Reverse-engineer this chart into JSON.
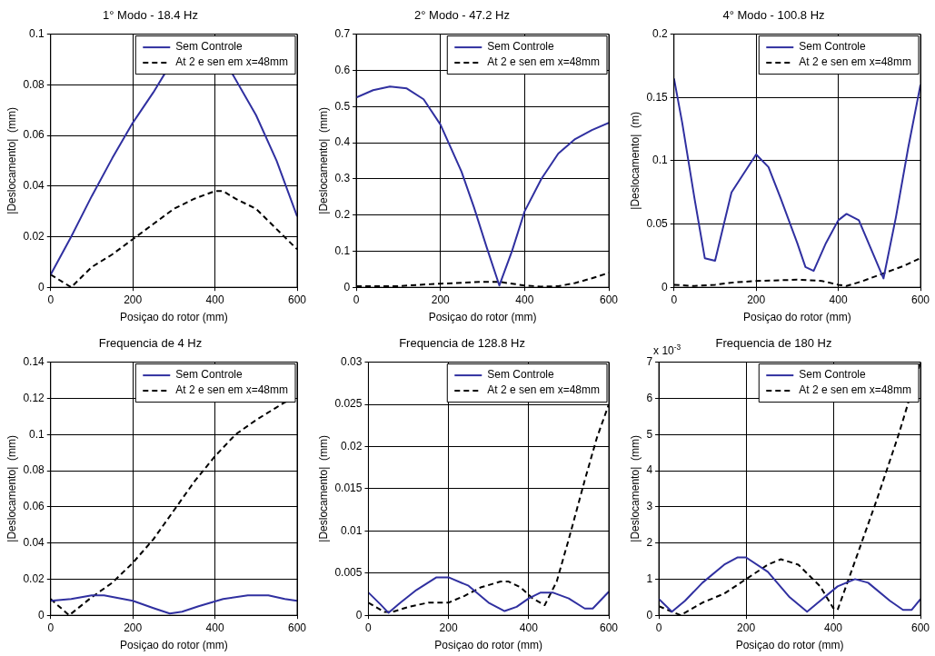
{
  "chart_data": [
    {
      "type": "line",
      "title": "1° Modo - 18.4 Hz",
      "xlabel": "Posiçao do rotor (mm)",
      "ylabel": "|Deslocamento|  (mm)",
      "xlim": [
        0,
        600
      ],
      "xticks": [
        0,
        200,
        400,
        600
      ],
      "ylim": [
        0,
        0.1
      ],
      "yticks": [
        0,
        0.02,
        0.04,
        0.06,
        0.08,
        0.1
      ],
      "grid": true,
      "legend": "top right",
      "series": [
        {
          "name": "Sem Controle",
          "color": "#3030a0",
          "line_style": "solid",
          "x": [
            0,
            50,
            100,
            150,
            200,
            250,
            280,
            300,
            420,
            440,
            500,
            550,
            600
          ],
          "values": [
            0.005,
            0.02,
            0.036,
            0.051,
            0.065,
            0.077,
            0.085,
            null,
            null,
            0.085,
            0.068,
            0.05,
            0.028
          ]
        },
        {
          "name": "At 2 e sen em x=48mm",
          "color": "#000000",
          "line_style": "dashed",
          "x": [
            0,
            50,
            100,
            150,
            200,
            250,
            300,
            350,
            400,
            420,
            450,
            500,
            550,
            600
          ],
          "values": [
            0.005,
            0,
            0.008,
            0.013,
            0.019,
            0.025,
            0.031,
            0.035,
            0.038,
            0.038,
            0.035,
            0.031,
            0.023,
            0.015
          ]
        }
      ]
    },
    {
      "type": "line",
      "title": "2° Modo - 47.2 Hz",
      "xlabel": "Posiçao do rotor (mm)",
      "ylabel": "|Deslocamento|  (mm)",
      "xlim": [
        0,
        600
      ],
      "xticks": [
        0,
        200,
        400,
        600
      ],
      "ylim": [
        0,
        0.7
      ],
      "yticks": [
        0,
        0.1,
        0.2,
        0.3,
        0.4,
        0.5,
        0.6,
        0.7
      ],
      "grid": true,
      "legend": "top right",
      "series": [
        {
          "name": "Sem Controle",
          "color": "#3030a0",
          "line_style": "solid",
          "x": [
            0,
            40,
            80,
            120,
            160,
            200,
            250,
            280,
            310,
            340,
            370,
            400,
            440,
            480,
            520,
            560,
            600
          ],
          "values": [
            0.525,
            0.545,
            0.555,
            0.55,
            0.52,
            0.45,
            0.32,
            0.22,
            0.11,
            0.005,
            0.1,
            0.21,
            0.3,
            0.37,
            0.41,
            0.435,
            0.455
          ]
        },
        {
          "name": "At 2 e sen em x=48mm",
          "color": "#000000",
          "line_style": "dashed",
          "x": [
            0,
            100,
            150,
            200,
            300,
            340,
            400,
            440,
            480,
            520,
            560,
            600
          ],
          "values": [
            0.003,
            0.003,
            0.007,
            0.01,
            0.015,
            0.015,
            0.005,
            0.002,
            0.003,
            0.012,
            0.025,
            0.04
          ]
        }
      ]
    },
    {
      "type": "line",
      "title": "4° Modo - 100.8 Hz",
      "xlabel": "Posiçao do rotor (mm)",
      "ylabel": "|Deslocamento|  (m)",
      "xlim": [
        0,
        600
      ],
      "xticks": [
        0,
        200,
        400,
        600
      ],
      "ylim": [
        0,
        0.2
      ],
      "yticks": [
        0,
        0.05,
        0.1,
        0.15,
        0.2
      ],
      "grid": true,
      "legend": "top right",
      "series": [
        {
          "name": "Sem Controle",
          "color": "#3030a0",
          "line_style": "solid",
          "x": [
            0,
            20,
            50,
            75,
            100,
            140,
            160,
            200,
            230,
            260,
            300,
            320,
            340,
            370,
            400,
            420,
            450,
            480,
            510,
            540,
            570,
            600
          ],
          "values": [
            0.165,
            0.13,
            0.07,
            0.023,
            0.021,
            0.075,
            0.085,
            0.105,
            0.095,
            0.07,
            0.035,
            0.016,
            0.013,
            0.035,
            0.053,
            0.058,
            0.053,
            0.03,
            0.007,
            0.055,
            0.11,
            0.16
          ]
        },
        {
          "name": "At 2 e sen em x=48mm",
          "color": "#000000",
          "line_style": "dashed",
          "x": [
            0,
            50,
            100,
            150,
            200,
            300,
            360,
            400,
            420,
            460,
            510,
            560,
            600
          ],
          "values": [
            0.002,
            0.001,
            0.002,
            0.004,
            0.005,
            0.006,
            0.005,
            0.002,
            0.001,
            0.005,
            0.011,
            0.017,
            0.023
          ]
        }
      ]
    },
    {
      "type": "line",
      "title": "Frequencia de 4 Hz",
      "xlabel": "Posiçao do rotor (mm)",
      "ylabel": "|Deslocamento|  (mm)",
      "xlim": [
        0,
        600
      ],
      "xticks": [
        0,
        200,
        400,
        600
      ],
      "ylim": [
        0,
        0.14
      ],
      "yticks": [
        0,
        0.02,
        0.04,
        0.06,
        0.08,
        0.1,
        0.12,
        0.14
      ],
      "grid": true,
      "legend": "top right",
      "series": [
        {
          "name": "Sem Controle",
          "color": "#3030a0",
          "line_style": "solid",
          "x": [
            0,
            50,
            100,
            130,
            200,
            250,
            290,
            320,
            360,
            420,
            480,
            530,
            570,
            600
          ],
          "values": [
            0.008,
            0.009,
            0.011,
            0.011,
            0.008,
            0.004,
            0.001,
            0.002,
            0.005,
            0.009,
            0.011,
            0.011,
            0.009,
            0.008
          ]
        },
        {
          "name": "At 2 e sen em x=48mm",
          "color": "#000000",
          "line_style": "dashed",
          "x": [
            0,
            45,
            100,
            150,
            200,
            250,
            300,
            350,
            400,
            450,
            500,
            550,
            600
          ],
          "values": [
            0.009,
            0,
            0.01,
            0.018,
            0.029,
            0.042,
            0.058,
            0.074,
            0.088,
            0.1,
            0.108,
            0.115,
            0.122
          ]
        }
      ]
    },
    {
      "type": "line",
      "title": "Frequencia de 128.8 Hz",
      "xlabel": "Posiçao do rotor (mm)",
      "ylabel": "|Deslocamento|  (mm)",
      "xlim": [
        0,
        600
      ],
      "xticks": [
        0,
        200,
        400,
        600
      ],
      "ylim": [
        0,
        0.03
      ],
      "yticks": [
        0,
        0.005,
        0.01,
        0.015,
        0.02,
        0.025,
        0.03
      ],
      "grid": true,
      "legend": "top right",
      "series": [
        {
          "name": "Sem Controle",
          "color": "#3030a0",
          "line_style": "solid",
          "x": [
            0,
            30,
            50,
            80,
            120,
            170,
            200,
            250,
            300,
            340,
            370,
            400,
            430,
            460,
            500,
            540,
            560,
            600
          ],
          "values": [
            0.0027,
            0.0013,
            0.0003,
            0.0015,
            0.003,
            0.0045,
            0.0045,
            0.0035,
            0.0015,
            0.0005,
            0.001,
            0.002,
            0.0027,
            0.0027,
            0.002,
            0.0008,
            0.0008,
            0.0028
          ]
        },
        {
          "name": "At 2 e sen em x=48mm",
          "color": "#000000",
          "line_style": "dashed",
          "x": [
            0,
            40,
            60,
            100,
            150,
            200,
            240,
            280,
            330,
            350,
            380,
            410,
            440,
            470,
            500,
            540,
            570,
            600
          ],
          "values": [
            0.0015,
            0.0004,
            0.0004,
            0.001,
            0.0015,
            0.0015,
            0.0023,
            0.0033,
            0.004,
            0.004,
            0.0033,
            0.002,
            0.0012,
            0.004,
            0.009,
            0.016,
            0.021,
            0.025
          ]
        }
      ]
    },
    {
      "type": "line",
      "title": "Frequencia de 180 Hz",
      "xlabel": "Posiçao do rotor (mm)",
      "ylabel": "|Deslocamento|  (mm)",
      "annotations": [
        "x 10$^{-3}$"
      ],
      "xlim": [
        0,
        600
      ],
      "xticks": [
        0,
        200,
        400,
        600
      ],
      "ylim": [
        0,
        7
      ],
      "yticks": [
        0,
        1,
        2,
        3,
        4,
        5,
        6,
        7
      ],
      "grid": true,
      "legend": "top right",
      "series": [
        {
          "name": "Sem Controle",
          "color": "#3030a0",
          "line_style": "solid",
          "x": [
            0,
            30,
            60,
            100,
            150,
            180,
            200,
            250,
            300,
            340,
            370,
            410,
            450,
            480,
            530,
            560,
            580,
            600
          ],
          "values": [
            0.45,
            0.1,
            0.4,
            0.9,
            1.4,
            1.6,
            1.6,
            1.2,
            0.5,
            0.1,
            0.4,
            0.8,
            1.0,
            0.9,
            0.4,
            0.15,
            0.15,
            0.45
          ]
        },
        {
          "name": "At 2 e sen em x=48mm",
          "color": "#000000",
          "line_style": "dashed",
          "x": [
            0,
            30,
            50,
            100,
            150,
            200,
            250,
            280,
            320,
            370,
            400,
            410,
            450,
            500,
            550,
            600
          ],
          "values": [
            0.25,
            0.1,
            0,
            0.35,
            0.6,
            1.0,
            1.4,
            1.55,
            1.4,
            0.8,
            0.2,
            0.15,
            1.5,
            3.2,
            5,
            7
          ]
        }
      ]
    }
  ]
}
